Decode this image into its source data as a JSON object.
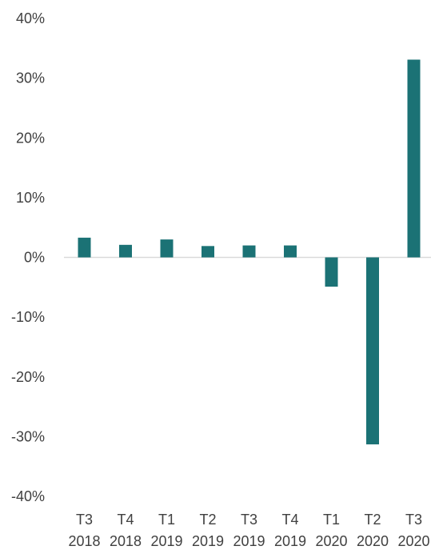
{
  "chart_data": {
    "type": "bar",
    "title": "",
    "xlabel": "",
    "ylabel": "",
    "categories": [
      [
        "T3",
        "2018"
      ],
      [
        "T4",
        "2018"
      ],
      [
        "T1",
        "2019"
      ],
      [
        "T2",
        "2019"
      ],
      [
        "T3",
        "2019"
      ],
      [
        "T4",
        "2019"
      ],
      [
        "T1",
        "2020"
      ],
      [
        "T2",
        "2020"
      ],
      [
        "T3",
        "2020"
      ]
    ],
    "values": [
      3.3,
      2.1,
      3.0,
      1.9,
      2.0,
      2.0,
      -4.9,
      -31.3,
      33.1
    ],
    "ylim": [
      -40,
      40
    ],
    "yticks": [
      -40,
      -30,
      -20,
      -10,
      0,
      10,
      20,
      30,
      40
    ],
    "ytick_labels": [
      "-40%",
      "-30%",
      "-20%",
      "-10%",
      "0%",
      "10%",
      "20%",
      "30%",
      "40%"
    ],
    "grid": false,
    "colors": {
      "bar": "#1B7275",
      "zero_line": "#D9D9D9"
    }
  }
}
